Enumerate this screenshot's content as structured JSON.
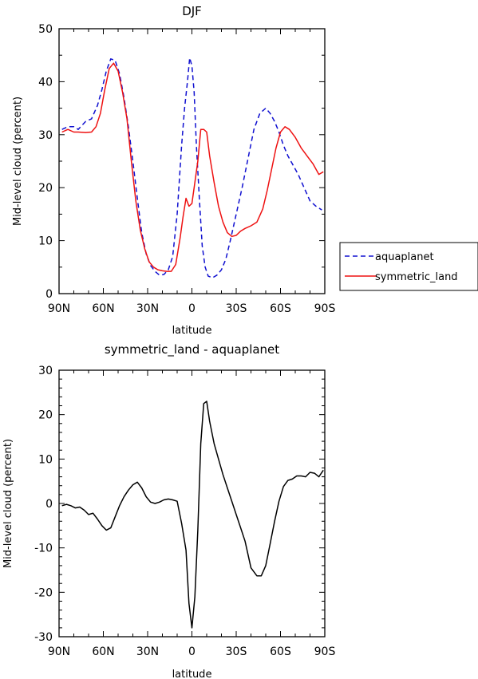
{
  "chart_data": [
    {
      "type": "line",
      "title": "DJF",
      "xlabel": "latitude",
      "ylabel": "Mid-level cloud (percent)",
      "x_tick_labels": [
        "90N",
        "60N",
        "30N",
        "0",
        "30S",
        "60S",
        "90S"
      ],
      "x_tick_values": [
        -90,
        -60,
        -30,
        0,
        30,
        60,
        90
      ],
      "y_ticks": [
        0,
        10,
        20,
        30,
        40,
        50
      ],
      "xlim": [
        -90,
        90
      ],
      "ylim": [
        0,
        50
      ],
      "x_direction": "north to south",
      "legend_position": "right",
      "series": [
        {
          "name": "aquaplanet",
          "color": "#1010d0",
          "style": "dashed",
          "x": [
            -88,
            -84,
            -80,
            -77,
            -72,
            -68,
            -64,
            -61,
            -58,
            -55,
            -52,
            -49,
            -46,
            -43,
            -40,
            -37,
            -34,
            -31,
            -28,
            -25,
            -22,
            -19,
            -16,
            -13,
            -10,
            -7,
            -5,
            -3,
            -1.5,
            0,
            1.5,
            3,
            5,
            7,
            9,
            11,
            14,
            17,
            20,
            23,
            26,
            30,
            34,
            38,
            42,
            46,
            50,
            53,
            56,
            59,
            62,
            65,
            68,
            72,
            76,
            80,
            84,
            88
          ],
          "values": [
            31,
            31.5,
            31.5,
            31,
            32.5,
            33,
            35.5,
            38.5,
            42,
            44.3,
            44,
            41.5,
            37,
            31.5,
            25,
            18,
            11.5,
            7.5,
            5.3,
            4.2,
            3.5,
            3.6,
            4.5,
            7,
            15,
            28,
            35,
            40,
            44.5,
            43,
            38,
            28,
            18,
            9,
            5,
            3.3,
            3,
            3.5,
            4.5,
            6.5,
            10,
            15,
            20,
            25.5,
            31,
            34,
            35,
            34,
            32.5,
            30.5,
            28,
            26,
            24.5,
            22.5,
            20,
            17.5,
            16.5,
            15.8
          ]
        },
        {
          "name": "symmetric_land",
          "color": "#ee1111",
          "style": "solid",
          "x": [
            -88,
            -84,
            -80,
            -77,
            -72,
            -68,
            -65,
            -62,
            -59,
            -56,
            -53,
            -50,
            -47,
            -44,
            -41,
            -38,
            -35,
            -32,
            -29,
            -26,
            -23,
            -20,
            -17,
            -14,
            -11,
            -8,
            -6,
            -4,
            -2,
            0,
            2,
            4,
            6,
            8,
            10,
            12,
            15,
            18,
            21,
            24,
            27,
            30,
            33,
            36,
            40,
            44,
            48,
            51,
            54,
            57,
            60,
            63,
            66,
            70,
            74,
            78,
            82,
            86,
            89
          ],
          "values": [
            30.5,
            31,
            30.5,
            30.5,
            30.4,
            30.5,
            31.5,
            34,
            38.5,
            42.5,
            43.5,
            42,
            38,
            33,
            25,
            17.5,
            12,
            8.5,
            6,
            5,
            4.5,
            4.3,
            4.2,
            4.2,
            5.5,
            10.5,
            14.5,
            18,
            16.5,
            17,
            21,
            25,
            31,
            31,
            30.5,
            26,
            21,
            16.5,
            13.5,
            11.5,
            10.8,
            11,
            11.8,
            12.3,
            12.8,
            13.5,
            16,
            19.5,
            23.5,
            27.5,
            30.5,
            31.5,
            31,
            29.5,
            27.5,
            26,
            24.5,
            22.5,
            23
          ]
        }
      ]
    },
    {
      "type": "line",
      "title": "symmetric_land - aquaplanet",
      "xlabel": "latitude",
      "ylabel": "Mid-level cloud (percent)",
      "x_tick_labels": [
        "90N",
        "60N",
        "30N",
        "0",
        "30S",
        "60S",
        "90S"
      ],
      "x_tick_values": [
        -90,
        -60,
        -30,
        0,
        30,
        60,
        90
      ],
      "y_ticks": [
        -30,
        -20,
        -10,
        0,
        10,
        20,
        30
      ],
      "xlim": [
        -90,
        90
      ],
      "ylim": [
        -30,
        30
      ],
      "x_direction": "north to south",
      "series": [
        {
          "color": "#000000",
          "style": "solid",
          "x": [
            -88,
            -85,
            -82,
            -79,
            -76,
            -73,
            -70,
            -67,
            -64,
            -61,
            -58,
            -55,
            -52,
            -49,
            -46,
            -43,
            -40,
            -37,
            -34,
            -31,
            -28,
            -25,
            -22,
            -19,
            -16,
            -13,
            -10,
            -7,
            -4,
            -2,
            0,
            2,
            4,
            6,
            8,
            10,
            12,
            15,
            18,
            21,
            24,
            27,
            30,
            33,
            36,
            40,
            44,
            47,
            50,
            53,
            56,
            59,
            62,
            65,
            68,
            71,
            74,
            77,
            80,
            83,
            86,
            89
          ],
          "values": [
            -0.5,
            -0.2,
            -0.5,
            -1,
            -0.8,
            -1.5,
            -2.5,
            -2.2,
            -3.5,
            -5,
            -6,
            -5.5,
            -3,
            -0.5,
            1.5,
            3,
            4.2,
            4.8,
            3.5,
            1.5,
            0.3,
            0,
            0.3,
            0.8,
            1,
            0.8,
            0.5,
            -4.5,
            -10.5,
            -22.5,
            -28,
            -21,
            -6,
            13.5,
            22.5,
            23,
            18.5,
            13.5,
            10,
            6.5,
            3.5,
            0.5,
            -2.5,
            -5.5,
            -8.5,
            -14.5,
            -16.3,
            -16.3,
            -14,
            -9,
            -4,
            0.5,
            3.8,
            5.2,
            5.5,
            6.2,
            6.2,
            6,
            7,
            6.8,
            6,
            7.5
          ]
        }
      ]
    }
  ]
}
